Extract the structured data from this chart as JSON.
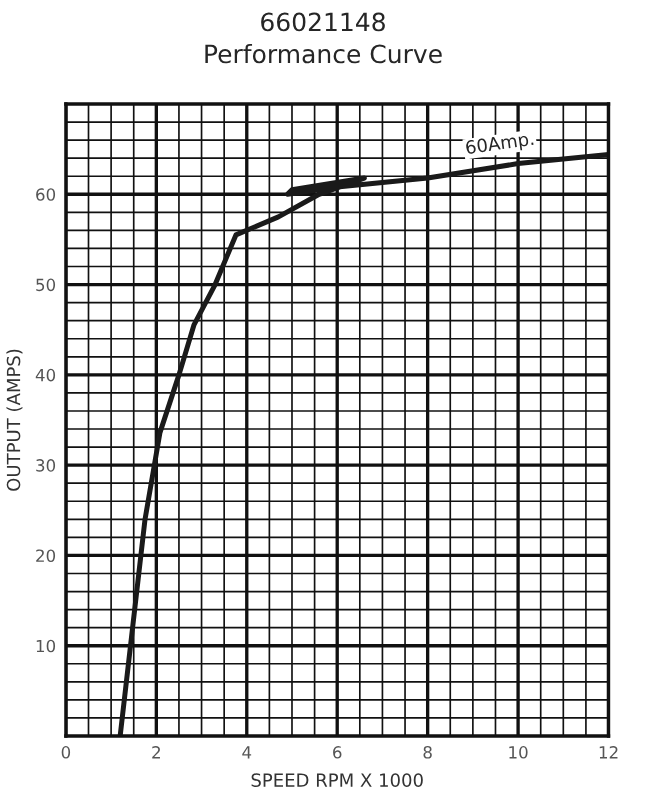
{
  "chart_data": {
    "type": "line",
    "title": "66021148",
    "subtitle": "Performance Curve",
    "xlabel": "SPEED RPM X 1000",
    "ylabel": "OUTPUT (AMPS)",
    "series": [
      {
        "color": "#1a1a1a",
        "x": [
          1.2,
          1.75,
          2.08,
          2.5,
          2.83,
          3.3,
          3.76,
          4.7,
          5.6,
          6.6,
          5.0,
          4.9,
          6.0,
          8,
          10,
          12
        ],
        "values": [
          0,
          24,
          33.6,
          40,
          45.5,
          50,
          55.5,
          57.5,
          60,
          61.8,
          60.5,
          60.0,
          60.8,
          61.8,
          63.4,
          64.4
        ]
      }
    ],
    "annotations": [
      {
        "text": "60Amp.",
        "x": 9.6,
        "y": 63.1
      }
    ],
    "xlim": [
      0,
      12
    ],
    "ylim": [
      0,
      70
    ],
    "xticks": [
      0,
      2,
      4,
      6,
      8,
      10,
      12
    ],
    "yticks": [
      10,
      20,
      30,
      40,
      50,
      60
    ],
    "grid": true,
    "legend": false,
    "marker": "none",
    "line_style": "solid"
  }
}
